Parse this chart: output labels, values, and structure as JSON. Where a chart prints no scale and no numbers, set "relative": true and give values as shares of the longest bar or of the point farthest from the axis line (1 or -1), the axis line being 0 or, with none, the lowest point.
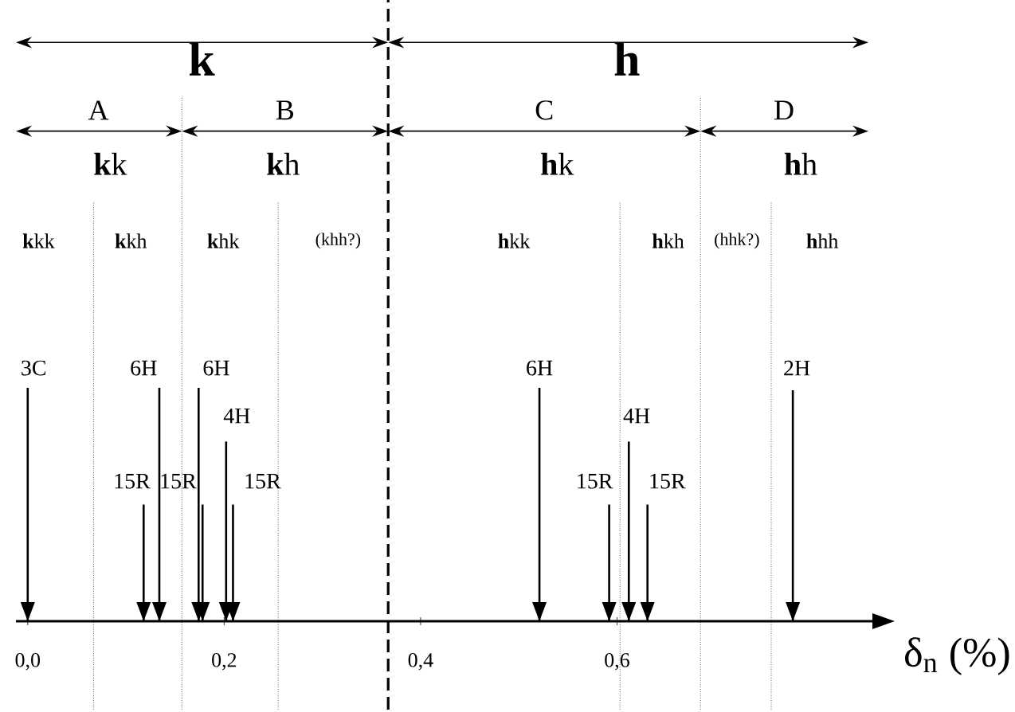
{
  "chart_data": {
    "type": "bar",
    "relative": true,
    "xlabel": "δ$_{n}$ (%)",
    "xlim": [
      -0.012,
      0.86
    ],
    "xticks": [
      {
        "value": 0,
        "label": "0,0"
      },
      {
        "value": 0.2,
        "label": "0,2"
      },
      {
        "value": 0.4,
        "label": "0,4"
      },
      {
        "value": 0.6,
        "label": "0,6"
      }
    ],
    "series": [
      {
        "color": "#000000",
        "x": [
          0.0,
          0.118,
          0.134,
          0.174,
          0.178,
          0.202,
          0.209,
          0.521,
          0.592,
          0.612,
          0.631,
          0.779
        ],
        "values": [
          1,
          0.5,
          1,
          1,
          0.5,
          0.77,
          0.5,
          1,
          0.5,
          0.77,
          0.5,
          0.99
        ]
      }
    ],
    "ref_lines": [
      {
        "axis": "x",
        "value": 0.067,
        "line_style": "dotted",
        "color": "#000000"
      },
      {
        "axis": "x",
        "value": 0.157,
        "line_style": "dotted",
        "color": "#000000"
      },
      {
        "axis": "x",
        "value": 0.255,
        "line_style": "dotted",
        "color": "#000000"
      },
      {
        "axis": "x",
        "value": 0.367,
        "line_style": "dashed",
        "color": "#000000"
      },
      {
        "axis": "x",
        "value": 0.603,
        "line_style": "dotted",
        "color": "#000000"
      },
      {
        "axis": "x",
        "value": 0.685,
        "line_style": "dotted",
        "color": "#000000"
      },
      {
        "axis": "x",
        "value": 0.757,
        "line_style": "dotted",
        "color": "#000000"
      }
    ],
    "annotations": [
      "k",
      "h",
      "A",
      "B",
      "C",
      "D",
      "**k**k",
      "**k**h",
      "**h**k",
      "**h**h",
      "**k**kk",
      "**k**kh",
      "**k**hk",
      "(khh?)",
      "**h**kk",
      "**h**kh",
      "(hhk?)",
      "**h**hh",
      "3C",
      "6H",
      "6H",
      "4H",
      "15R",
      "15R",
      "15R",
      "6H",
      "2H",
      "4H",
      "15R",
      "15R"
    ]
  }
}
